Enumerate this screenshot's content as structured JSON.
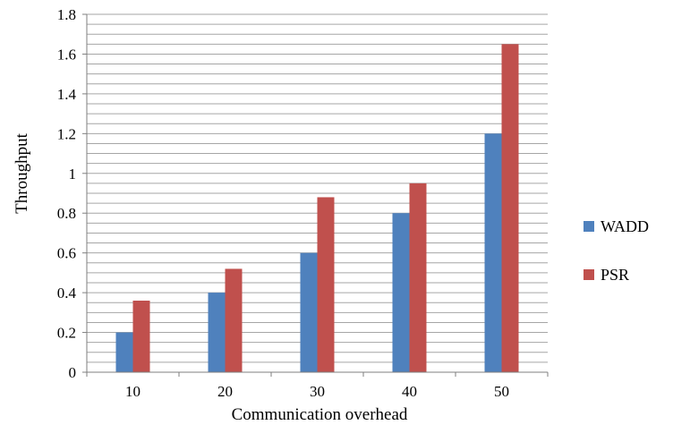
{
  "chart_data": {
    "type": "bar",
    "categories": [
      "10",
      "20",
      "30",
      "40",
      "50"
    ],
    "series": [
      {
        "name": "WADD",
        "values": [
          0.2,
          0.4,
          0.6,
          0.8,
          1.2
        ],
        "color": "#4f81bd"
      },
      {
        "name": "PSR",
        "values": [
          0.36,
          0.52,
          0.88,
          0.95,
          1.65
        ],
        "color": "#c0504d"
      }
    ],
    "xlabel": "Communication overhead",
    "ylabel": "Throughput",
    "ylim": [
      0,
      1.8
    ],
    "yticks": [
      "0",
      "0.2",
      "0.4",
      "0.6",
      "0.8",
      "1",
      "1.2",
      "1.4",
      "1.6",
      "1.8"
    ],
    "minor_grid_step": 0.05,
    "grid": true,
    "legend_position": "right"
  }
}
